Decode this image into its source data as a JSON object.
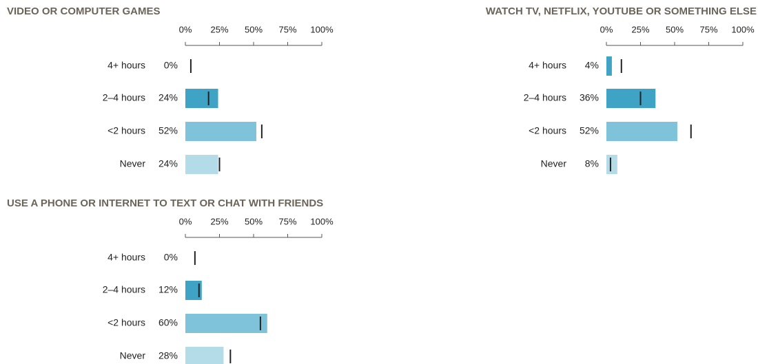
{
  "chart_data": [
    {
      "type": "bar",
      "orientation": "horizontal",
      "title": "VIDEO OR COMPUTER GAMES",
      "categories": [
        "4+ hours",
        "2–4 hours",
        "<2 hours",
        "Never"
      ],
      "values": [
        0,
        24,
        52,
        24
      ],
      "value_labels": [
        "0%",
        "24%",
        "52%",
        "24%"
      ],
      "markers": [
        4,
        17,
        56,
        25
      ],
      "colors": [
        "#3fa3c5",
        "#3fa3c5",
        "#7ec3da",
        "#b4dbe8"
      ],
      "xlim": [
        0,
        100
      ],
      "xticks": [
        {
          "value": 0,
          "label": "0%"
        },
        {
          "value": 25,
          "label": "25%"
        },
        {
          "value": 50,
          "label": "50%"
        },
        {
          "value": 75,
          "label": "75%"
        },
        {
          "value": 100,
          "label": "100%"
        }
      ]
    },
    {
      "type": "bar",
      "orientation": "horizontal",
      "title": "WATCH TV, NETFLIX, YOUTUBE OR SOMETHING ELSE",
      "categories": [
        "4+ hours",
        "2–4 hours",
        "<2 hours",
        "Never"
      ],
      "values": [
        4,
        36,
        52,
        8
      ],
      "value_labels": [
        "4%",
        "36%",
        "52%",
        "8%"
      ],
      "markers": [
        11,
        25,
        62,
        3
      ],
      "colors": [
        "#3fa3c5",
        "#3fa3c5",
        "#7ec3da",
        "#b4dbe8"
      ],
      "xlim": [
        0,
        100
      ],
      "xticks": [
        {
          "value": 0,
          "label": "0%"
        },
        {
          "value": 25,
          "label": "25%"
        },
        {
          "value": 50,
          "label": "50%"
        },
        {
          "value": 75,
          "label": "75%"
        },
        {
          "value": 100,
          "label": "100%"
        }
      ]
    },
    {
      "type": "bar",
      "orientation": "horizontal",
      "title": "USE A PHONE OR INTERNET TO TEXT OR CHAT WITH FRIENDS",
      "categories": [
        "4+ hours",
        "2–4 hours",
        "<2 hours",
        "Never"
      ],
      "values": [
        0,
        12,
        60,
        28
      ],
      "value_labels": [
        "0%",
        "12%",
        "60%",
        "28%"
      ],
      "markers": [
        7,
        10,
        55,
        33
      ],
      "colors": [
        "#3fa3c5",
        "#3fa3c5",
        "#7ec3da",
        "#b4dbe8"
      ],
      "xlim": [
        0,
        100
      ],
      "xticks": [
        {
          "value": 0,
          "label": "0%"
        },
        {
          "value": 25,
          "label": "25%"
        },
        {
          "value": 50,
          "label": "50%"
        },
        {
          "value": 75,
          "label": "75%"
        },
        {
          "value": 100,
          "label": "100%"
        }
      ]
    }
  ]
}
